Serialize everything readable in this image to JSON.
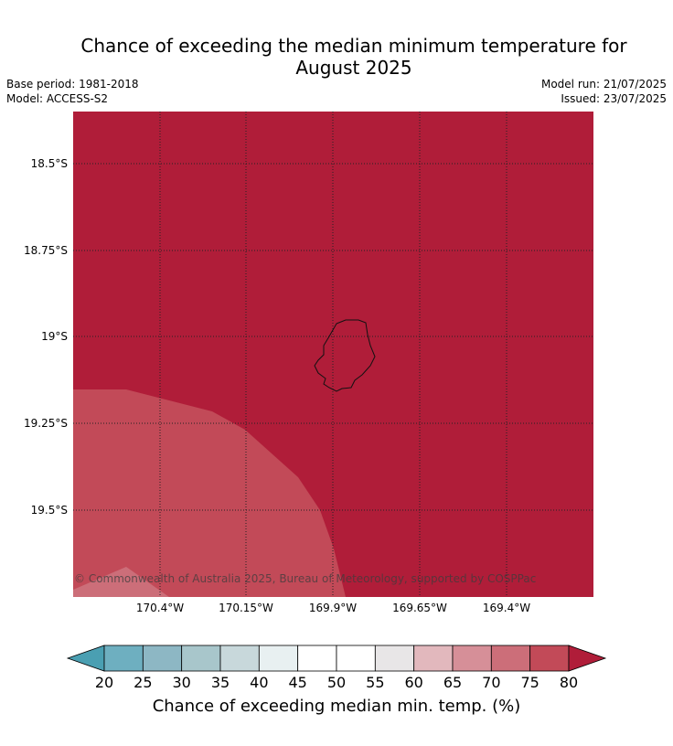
{
  "header": {
    "title_line1": "Chance of exceeding the median minimum temperature for",
    "title_line2": "August 2025",
    "base_period": "Base period: 1981-2018",
    "model": "Model: ACCESS-S2",
    "model_run": "Model run: 21/07/2025",
    "issued": "Issued: 23/07/2025"
  },
  "map": {
    "latitude_labels": [
      "18.5°S",
      "18.75°S",
      "19°S",
      "19.25°S",
      "19.5°S"
    ],
    "longitude_labels": [
      "170.4°W",
      "170.15°W",
      "169.9°W",
      "169.65°W",
      "169.4°W"
    ],
    "copyright": "© Commonwealth of Australia 2025, Bureau of Meteorology, supported by COSPPac",
    "region_classes": [
      {
        "category": "80+",
        "color": "#b01d39"
      },
      {
        "category": "75-80",
        "color": "#c24a58"
      },
      {
        "category": "70-75",
        "color": "#cc6e79"
      }
    ]
  },
  "colorbar": {
    "ticks": [
      "20",
      "25",
      "30",
      "35",
      "40",
      "45",
      "50",
      "55",
      "60",
      "65",
      "70",
      "75",
      "80"
    ],
    "colors": [
      "#4a9fb2",
      "#6eafc0",
      "#8db7c4",
      "#a8c6cb",
      "#c8d8db",
      "#e8f0f1",
      "#ffffff",
      "#ffffff",
      "#e8e6e7",
      "#e2b8bd",
      "#d68f98",
      "#cc6e79",
      "#c24a58",
      "#b01d39"
    ],
    "label": "Chance of exceeding median min. temp. (%)"
  }
}
